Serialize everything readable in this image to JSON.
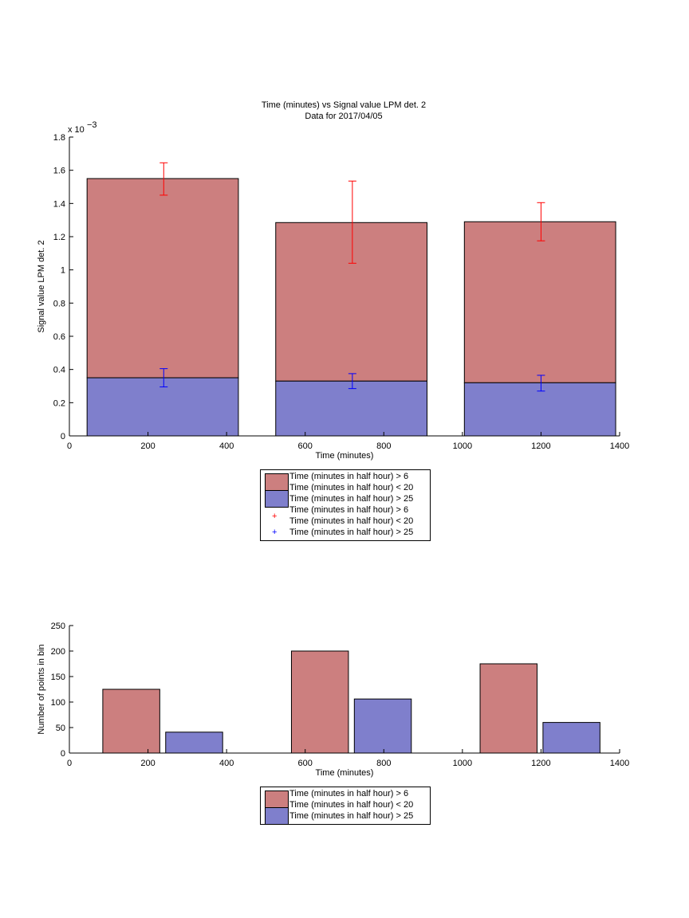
{
  "chart_data": [
    {
      "type": "bar",
      "title": "Time (minutes) vs Signal value LPM det. 2",
      "subtitle": "Data for 2017/04/05",
      "xlabel": "Time (minutes)",
      "ylabel": "Signal value LPM det. 2",
      "exponent_label": "x 10",
      "exponent_power": "−3",
      "xlim": [
        0,
        1400
      ],
      "ylim": [
        0,
        1.8
      ],
      "xticks": [
        "0",
        "200",
        "400",
        "600",
        "800",
        "1000",
        "1200",
        "1400"
      ],
      "yticks": [
        "0",
        "0.2",
        "0.4",
        "0.6",
        "0.8",
        "1",
        "1.2",
        "1.4",
        "1.6",
        "1.8"
      ],
      "bars": [
        {
          "x0": 45,
          "x1": 430,
          "top": 1.55,
          "bottom": 0.35
        },
        {
          "x0": 525,
          "x1": 910,
          "top": 1.285,
          "bottom": 0.33
        },
        {
          "x0": 1005,
          "x1": 1390,
          "top": 1.29,
          "bottom": 0.32
        }
      ],
      "series": [
        {
          "name": "Time (minutes in half hour) > 6\nTime (minutes in half hour) < 20",
          "color": "#cc7f7f",
          "x": [
            240,
            720,
            1200
          ],
          "mean": [
            1.55,
            1.285,
            1.29
          ],
          "err_low": [
            1.45,
            1.04,
            1.175
          ],
          "err_high": [
            1.645,
            1.535,
            1.405
          ],
          "err_color": "#ff0000"
        },
        {
          "name": "Time (minutes in half hour) > 25",
          "color": "#7f7fcc",
          "x": [
            240,
            720,
            1200
          ],
          "mean": [
            0.35,
            0.33,
            0.32
          ],
          "err_low": [
            0.295,
            0.285,
            0.27
          ],
          "err_high": [
            0.405,
            0.375,
            0.365
          ],
          "err_color": "#0000ff"
        }
      ],
      "legend": [
        {
          "line1": "Time (minutes in half hour) > 6",
          "line2": "Time (minutes in half hour) < 20",
          "marker": "swatch",
          "color": "#cc7f7f"
        },
        {
          "line1": "Time (minutes in half hour) > 25",
          "marker": "swatch",
          "color": "#7f7fcc"
        },
        {
          "line1": "Time (minutes in half hour) > 6",
          "line2": "Time (minutes in half hour) < 20",
          "marker": "+",
          "color": "#ff0000"
        },
        {
          "line1": "Time (minutes in half hour) > 25",
          "marker": "+",
          "color": "#0000ff"
        }
      ]
    },
    {
      "type": "bar",
      "xlabel": "Time (minutes)",
      "ylabel": "Number of points in bin",
      "xlim": [
        0,
        1400
      ],
      "ylim": [
        0,
        250
      ],
      "xticks": [
        "0",
        "200",
        "400",
        "600",
        "800",
        "1000",
        "1200",
        "1400"
      ],
      "yticks": [
        "0",
        "50",
        "100",
        "150",
        "200",
        "250"
      ],
      "series": [
        {
          "name": "Time (minutes in half hour) > 6\nTime (minutes in half hour) < 20",
          "color": "#cc7f7f",
          "bars": [
            {
              "x0": 85,
              "x1": 230,
              "value": 125
            },
            {
              "x0": 565,
              "x1": 710,
              "value": 200
            },
            {
              "x0": 1045,
              "x1": 1190,
              "value": 175
            }
          ]
        },
        {
          "name": "Time (minutes in half hour) > 25",
          "color": "#7f7fcc",
          "bars": [
            {
              "x0": 245,
              "x1": 390,
              "value": 41
            },
            {
              "x0": 725,
              "x1": 870,
              "value": 106
            },
            {
              "x0": 1205,
              "x1": 1350,
              "value": 60
            }
          ]
        }
      ],
      "legend": [
        {
          "line1": "Time (minutes in half hour) > 6",
          "line2": "Time (minutes in half hour) < 20",
          "marker": "swatch",
          "color": "#cc7f7f"
        },
        {
          "line1": "Time (minutes in half hour) > 25",
          "marker": "swatch",
          "color": "#7f7fcc"
        }
      ]
    }
  ]
}
